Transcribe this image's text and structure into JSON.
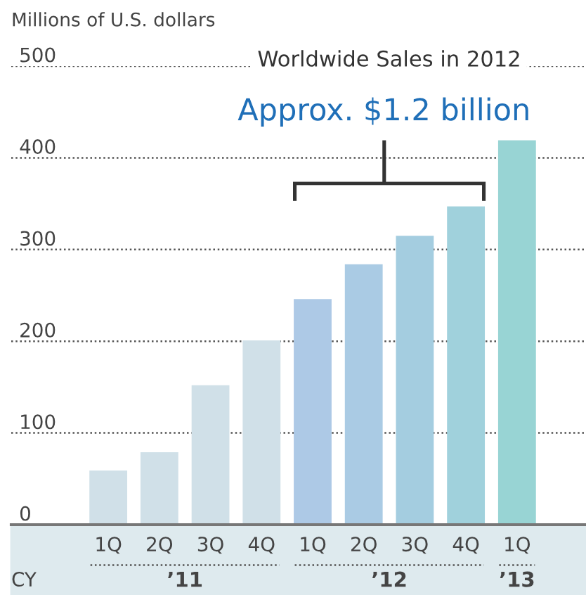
{
  "chart_data": {
    "type": "bar",
    "title": "Worldwide Sales in 2012",
    "ylabel": "Millions of U.S. dollars",
    "categories": [
      "1Q",
      "2Q",
      "3Q",
      "4Q",
      "1Q",
      "2Q",
      "3Q",
      "4Q",
      "1Q"
    ],
    "values": [
      59,
      79,
      152,
      201,
      246,
      284,
      315,
      347,
      419
    ],
    "colors": [
      "#d0e0e8",
      "#d0e0e8",
      "#d0e0e8",
      "#d0e0e8",
      "#adc9e6",
      "#aacbe4",
      "#a4cde0",
      "#a0d1dc",
      "#98d4d4"
    ],
    "ylim": [
      0,
      500
    ],
    "yticks": [
      0,
      100,
      200,
      300,
      400,
      500
    ],
    "grid": "y",
    "legend": false,
    "annotations": [
      "Approx. $1.2 billion",
      "CY",
      "’11",
      "’12",
      "’13"
    ]
  }
}
